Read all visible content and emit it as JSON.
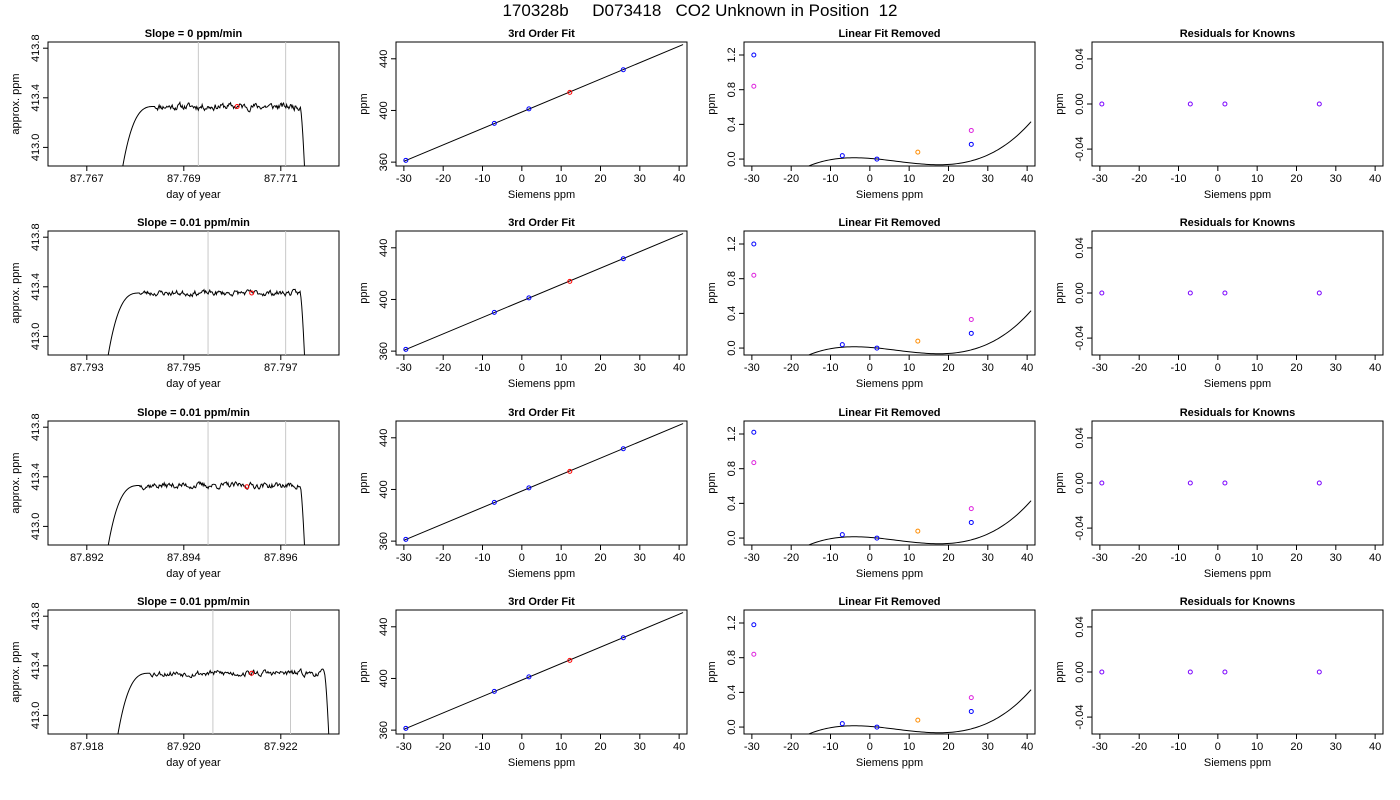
{
  "page_title": "170328b     D073418   CO2 Unknown in Position  12",
  "colors": {
    "axis": "#000000",
    "curve": "#000000",
    "window_line": "#c8c8c8",
    "known_point": "#0000ff",
    "unknown_point": "#ff0000",
    "predicted_point": "#ff8c00",
    "raw_point": "#dd22dd",
    "residual_point": "#7a00ff"
  },
  "chart_data": [
    {
      "type": "line",
      "panel": "timeseries",
      "title": "Slope =  0  ppm/min",
      "xlabel": "day of year",
      "ylabel": "approx. ppm",
      "xlim": [
        87.7662,
        87.7722
      ],
      "ylim": [
        412.85,
        413.85
      ],
      "xticks": [
        "87.767",
        "87.769",
        "87.771"
      ],
      "yticks": [
        "413.0",
        "413.4",
        "413.8"
      ],
      "trace": {
        "start": 87.7677,
        "rise_end": 87.7684,
        "end": 87.7714,
        "fall": 87.7715,
        "level": 413.33,
        "noise": 0.022,
        "seed": 11
      },
      "window_lines": [
        87.7693,
        87.7711
      ],
      "marker": {
        "x": 87.7701,
        "y": 413.33
      }
    },
    {
      "type": "scatter",
      "panel": "fit",
      "title": "3rd Order Fit",
      "xlabel": "Siemens ppm",
      "ylabel": "ppm",
      "xlim": [
        -32,
        42
      ],
      "ylim": [
        357,
        453
      ],
      "xticks": [
        "-30",
        "-20",
        "-10",
        "0",
        "10",
        "20",
        "30",
        "40"
      ],
      "yticks": [
        "360",
        "400",
        "440"
      ],
      "line": {
        "x": [
          -30,
          41
        ],
        "y": [
          360.6,
          451.0
        ]
      },
      "known": [
        {
          "x": -29.5,
          "y": 361.4
        },
        {
          "x": -7,
          "y": 390.0
        },
        {
          "x": 1.8,
          "y": 401.2
        },
        {
          "x": 25.8,
          "y": 431.5
        }
      ],
      "unknown": [
        {
          "x": 12.2,
          "y": 414.0
        }
      ]
    },
    {
      "type": "scatter",
      "panel": "linear_removed",
      "title": "Linear Fit Removed",
      "xlabel": "Siemens ppm",
      "ylabel": "ppm",
      "xlim": [
        -32,
        42
      ],
      "ylim": [
        -0.08,
        1.35
      ],
      "xticks": [
        "-30",
        "-20",
        "-10",
        "0",
        "10",
        "20",
        "30",
        "40"
      ],
      "yticks": [
        "0.0",
        "0.4",
        "0.8",
        "1.2"
      ],
      "curve_poly": [
        0.00775,
        -0.0033833,
        -0.00032917,
        1.6183e-05
      ],
      "curve_x": [
        -30,
        41
      ],
      "known": [
        {
          "x": -29.5,
          "y": 1.2
        },
        {
          "x": -7,
          "y": 0.04
        },
        {
          "x": 1.8,
          "y": 0.0
        },
        {
          "x": 25.8,
          "y": 0.17
        }
      ],
      "raw": [
        {
          "x": -29.5,
          "y": 0.84
        },
        {
          "x": 25.8,
          "y": 0.33
        }
      ],
      "unknown": [
        {
          "x": 12.2,
          "y": 0.08
        }
      ]
    },
    {
      "type": "scatter",
      "panel": "residuals",
      "title": "Residuals for Knowns",
      "xlabel": "Siemens ppm",
      "ylabel": "ppm",
      "xlim": [
        -32,
        42
      ],
      "ylim": [
        -0.055,
        0.055
      ],
      "xticks": [
        "-30",
        "-20",
        "-10",
        "0",
        "10",
        "20",
        "30",
        "40"
      ],
      "yticks": [
        "-0.04",
        "0.00",
        "0.04"
      ],
      "points": [
        {
          "x": -29.5,
          "y": 0.0
        },
        {
          "x": -7,
          "y": 0.0
        },
        {
          "x": 1.8,
          "y": 0.0
        },
        {
          "x": 25.8,
          "y": 0.0
        }
      ]
    },
    {
      "type": "line",
      "panel": "timeseries",
      "title": "Slope =  0.01  ppm/min",
      "xlabel": "day of year",
      "ylabel": "approx. ppm",
      "xlim": [
        87.7922,
        87.7982
      ],
      "ylim": [
        412.85,
        413.85
      ],
      "xticks": [
        "87.793",
        "87.795",
        "87.797"
      ],
      "yticks": [
        "413.0",
        "413.4",
        "413.8"
      ],
      "trace": {
        "start": 87.7934,
        "rise_end": 87.7941,
        "end": 87.7974,
        "fall": 87.7975,
        "level": 413.35,
        "noise": 0.018,
        "seed": 23
      },
      "window_lines": [
        87.7955,
        87.7971
      ],
      "marker": {
        "x": 87.7964,
        "y": 413.35
      }
    },
    {
      "type": "scatter",
      "panel": "fit",
      "title": "3rd Order Fit",
      "xlabel": "Siemens ppm",
      "ylabel": "ppm",
      "xlim": [
        -32,
        42
      ],
      "ylim": [
        357,
        453
      ],
      "xticks": [
        "-30",
        "-20",
        "-10",
        "0",
        "10",
        "20",
        "30",
        "40"
      ],
      "yticks": [
        "360",
        "400",
        "440"
      ],
      "line": {
        "x": [
          -30,
          41
        ],
        "y": [
          360.6,
          451.0
        ]
      },
      "known": [
        {
          "x": -29.5,
          "y": 361.4
        },
        {
          "x": -7,
          "y": 390.0
        },
        {
          "x": 1.8,
          "y": 401.2
        },
        {
          "x": 25.8,
          "y": 431.5
        }
      ],
      "unknown": [
        {
          "x": 12.2,
          "y": 414.0
        }
      ]
    },
    {
      "type": "scatter",
      "panel": "linear_removed",
      "title": "Linear Fit Removed",
      "xlabel": "Siemens ppm",
      "ylabel": "ppm",
      "xlim": [
        -32,
        42
      ],
      "ylim": [
        -0.08,
        1.35
      ],
      "xticks": [
        "-30",
        "-20",
        "-10",
        "0",
        "10",
        "20",
        "30",
        "40"
      ],
      "yticks": [
        "0.0",
        "0.4",
        "0.8",
        "1.2"
      ],
      "curve_poly": [
        0.00775,
        -0.0033833,
        -0.00032917,
        1.6183e-05
      ],
      "curve_x": [
        -30,
        41
      ],
      "known": [
        {
          "x": -29.5,
          "y": 1.2
        },
        {
          "x": -7,
          "y": 0.04
        },
        {
          "x": 1.8,
          "y": 0.0
        },
        {
          "x": 25.8,
          "y": 0.17
        }
      ],
      "raw": [
        {
          "x": -29.5,
          "y": 0.84
        },
        {
          "x": 25.8,
          "y": 0.33
        }
      ],
      "unknown": [
        {
          "x": 12.2,
          "y": 0.08
        }
      ]
    },
    {
      "type": "scatter",
      "panel": "residuals",
      "title": "Residuals for Knowns",
      "xlabel": "Siemens ppm",
      "ylabel": "ppm",
      "xlim": [
        -32,
        42
      ],
      "ylim": [
        -0.055,
        0.055
      ],
      "xticks": [
        "-30",
        "-20",
        "-10",
        "0",
        "10",
        "20",
        "30",
        "40"
      ],
      "yticks": [
        "-0.04",
        "0.00",
        "0.04"
      ],
      "points": [
        {
          "x": -29.5,
          "y": 0.0
        },
        {
          "x": -7,
          "y": 0.0
        },
        {
          "x": 1.8,
          "y": 0.0
        },
        {
          "x": 25.8,
          "y": 0.0
        }
      ]
    },
    {
      "type": "line",
      "panel": "timeseries",
      "title": "Slope =  0.01  ppm/min",
      "xlabel": "day of year",
      "ylabel": "approx. ppm",
      "xlim": [
        87.8912,
        87.8972
      ],
      "ylim": [
        412.85,
        413.85
      ],
      "xticks": [
        "87.892",
        "87.894",
        "87.896"
      ],
      "yticks": [
        "413.0",
        "413.4",
        "413.8"
      ],
      "trace": {
        "start": 87.8924,
        "rise_end": 87.8931,
        "end": 87.8964,
        "fall": 87.8965,
        "level": 413.33,
        "noise": 0.02,
        "seed": 37
      },
      "window_lines": [
        87.8945,
        87.8961
      ],
      "marker": {
        "x": 87.8953,
        "y": 413.32
      }
    },
    {
      "type": "scatter",
      "panel": "fit",
      "title": "3rd Order Fit",
      "xlabel": "Siemens ppm",
      "ylabel": "ppm",
      "xlim": [
        -32,
        42
      ],
      "ylim": [
        357,
        453
      ],
      "xticks": [
        "-30",
        "-20",
        "-10",
        "0",
        "10",
        "20",
        "30",
        "40"
      ],
      "yticks": [
        "360",
        "400",
        "440"
      ],
      "line": {
        "x": [
          -30,
          41
        ],
        "y": [
          360.6,
          451.0
        ]
      },
      "known": [
        {
          "x": -29.5,
          "y": 361.4
        },
        {
          "x": -7,
          "y": 390.0
        },
        {
          "x": 1.8,
          "y": 401.2
        },
        {
          "x": 25.8,
          "y": 431.5
        }
      ],
      "unknown": [
        {
          "x": 12.2,
          "y": 414.0
        }
      ]
    },
    {
      "type": "scatter",
      "panel": "linear_removed",
      "title": "Linear Fit Removed",
      "xlabel": "Siemens ppm",
      "ylabel": "ppm",
      "xlim": [
        -32,
        42
      ],
      "ylim": [
        -0.08,
        1.35
      ],
      "xticks": [
        "-30",
        "-20",
        "-10",
        "0",
        "10",
        "20",
        "30",
        "40"
      ],
      "yticks": [
        "0.0",
        "0.4",
        "0.8",
        "1.2"
      ],
      "curve_poly": [
        0.00775,
        -0.0033833,
        -0.00032917,
        1.6183e-05
      ],
      "curve_x": [
        -30,
        41
      ],
      "known": [
        {
          "x": -29.5,
          "y": 1.22
        },
        {
          "x": -7,
          "y": 0.04
        },
        {
          "x": 1.8,
          "y": 0.0
        },
        {
          "x": 25.8,
          "y": 0.18
        }
      ],
      "raw": [
        {
          "x": -29.5,
          "y": 0.87
        },
        {
          "x": 25.8,
          "y": 0.34
        }
      ],
      "unknown": [
        {
          "x": 12.2,
          "y": 0.08
        }
      ]
    },
    {
      "type": "scatter",
      "panel": "residuals",
      "title": "Residuals for Knowns",
      "xlabel": "Siemens ppm",
      "ylabel": "ppm",
      "xlim": [
        -32,
        42
      ],
      "ylim": [
        -0.055,
        0.055
      ],
      "xticks": [
        "-30",
        "-20",
        "-10",
        "0",
        "10",
        "20",
        "30",
        "40"
      ],
      "yticks": [
        "-0.04",
        "0.00",
        "0.04"
      ],
      "points": [
        {
          "x": -29.5,
          "y": 0.0
        },
        {
          "x": -7,
          "y": 0.0
        },
        {
          "x": 1.8,
          "y": 0.0
        },
        {
          "x": 25.8,
          "y": 0.0
        }
      ]
    },
    {
      "type": "line",
      "panel": "timeseries",
      "title": "Slope =  0.01  ppm/min",
      "xlabel": "day of year",
      "ylabel": "approx. ppm",
      "xlim": [
        87.9172,
        87.9232
      ],
      "ylim": [
        412.85,
        413.85
      ],
      "xticks": [
        "87.918",
        "87.920",
        "87.922"
      ],
      "yticks": [
        "413.0",
        "413.4",
        "413.8"
      ],
      "trace": {
        "start": 87.9186,
        "rise_end": 87.9193,
        "end": 87.9229,
        "fall": 87.923,
        "level": 413.34,
        "noise": 0.02,
        "seed": 53
      },
      "window_lines": [
        87.9206,
        87.9222
      ],
      "marker": {
        "x": 87.9214,
        "y": 413.34
      }
    },
    {
      "type": "scatter",
      "panel": "fit",
      "title": "3rd Order Fit",
      "xlabel": "Siemens ppm",
      "ylabel": "ppm",
      "xlim": [
        -32,
        42
      ],
      "ylim": [
        357,
        453
      ],
      "xticks": [
        "-30",
        "-20",
        "-10",
        "0",
        "10",
        "20",
        "30",
        "40"
      ],
      "yticks": [
        "360",
        "400",
        "440"
      ],
      "line": {
        "x": [
          -30,
          41
        ],
        "y": [
          360.6,
          451.0
        ]
      },
      "known": [
        {
          "x": -29.5,
          "y": 361.4
        },
        {
          "x": -7,
          "y": 390.0
        },
        {
          "x": 1.8,
          "y": 401.2
        },
        {
          "x": 25.8,
          "y": 431.5
        }
      ],
      "unknown": [
        {
          "x": 12.2,
          "y": 414.0
        }
      ]
    },
    {
      "type": "scatter",
      "panel": "linear_removed",
      "title": "Linear Fit Removed",
      "xlabel": "Siemens ppm",
      "ylabel": "ppm",
      "xlim": [
        -32,
        42
      ],
      "ylim": [
        -0.08,
        1.35
      ],
      "xticks": [
        "-30",
        "-20",
        "-10",
        "0",
        "10",
        "20",
        "30",
        "40"
      ],
      "yticks": [
        "0.0",
        "0.4",
        "0.8",
        "1.2"
      ],
      "curve_poly": [
        0.00775,
        -0.0033833,
        -0.00032917,
        1.6183e-05
      ],
      "curve_x": [
        -30,
        41
      ],
      "known": [
        {
          "x": -29.5,
          "y": 1.18
        },
        {
          "x": -7,
          "y": 0.04
        },
        {
          "x": 1.8,
          "y": 0.0
        },
        {
          "x": 25.8,
          "y": 0.18
        }
      ],
      "raw": [
        {
          "x": -29.5,
          "y": 0.84
        },
        {
          "x": 25.8,
          "y": 0.34
        }
      ],
      "unknown": [
        {
          "x": 12.2,
          "y": 0.08
        }
      ]
    },
    {
      "type": "scatter",
      "panel": "residuals",
      "title": "Residuals for Knowns",
      "xlabel": "Siemens ppm",
      "ylabel": "ppm",
      "xlim": [
        -32,
        42
      ],
      "ylim": [
        -0.055,
        0.055
      ],
      "xticks": [
        "-30",
        "-20",
        "-10",
        "0",
        "10",
        "20",
        "30",
        "40"
      ],
      "yticks": [
        "-0.04",
        "0.00",
        "0.04"
      ],
      "points": [
        {
          "x": -29.5,
          "y": 0.0
        },
        {
          "x": -7,
          "y": 0.0
        },
        {
          "x": 1.8,
          "y": 0.0
        },
        {
          "x": 25.8,
          "y": 0.0
        }
      ]
    }
  ]
}
